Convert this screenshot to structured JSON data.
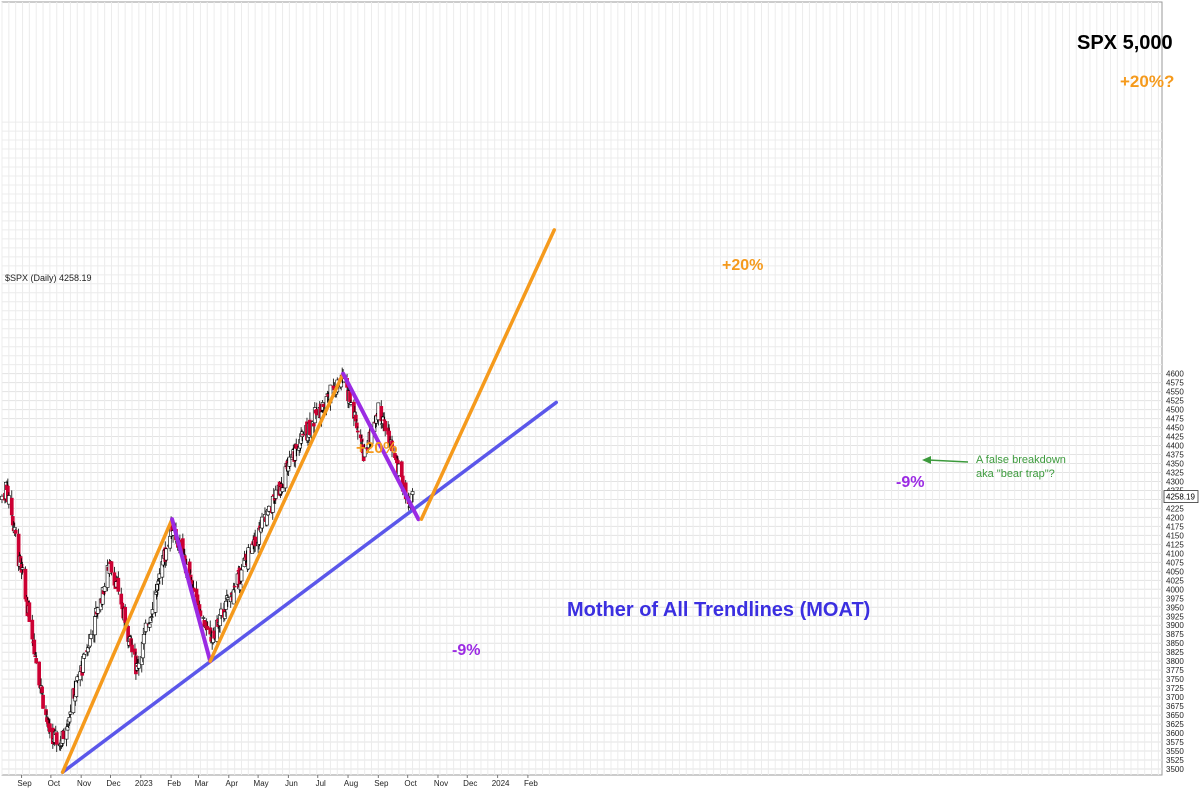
{
  "chart_data": {
    "type": "candlestick",
    "symbol_label": "$SPX (Daily) 4258.19",
    "last_price_label": "4258.19",
    "title": "SPX 5,000",
    "y_ticks": [
      3500,
      3525,
      3550,
      3575,
      3600,
      3625,
      3650,
      3675,
      3700,
      3725,
      3750,
      3775,
      3800,
      3825,
      3850,
      3875,
      3900,
      3925,
      3950,
      3975,
      4000,
      4025,
      4050,
      4075,
      4100,
      4125,
      4150,
      4175,
      4200,
      4225,
      4250,
      4275,
      4300,
      4325,
      4350,
      4375,
      4400,
      4425,
      4450,
      4475,
      4500,
      4525,
      4550,
      4575,
      4600
    ],
    "x_labels": [
      "Sep",
      "Oct",
      "Nov",
      "Dec",
      "2023",
      "Feb",
      "Mar",
      "Apr",
      "May",
      "Jun",
      "Jul",
      "Aug",
      "Sep",
      "Oct",
      "Nov",
      "Dec",
      "2024",
      "Feb"
    ],
    "ylim": [
      3490,
      4610
    ],
    "grid": true,
    "price_series_key_points": [
      {
        "date": "2022-08-16",
        "close": 4300
      },
      {
        "date": "2022-09-30",
        "close": 3585
      },
      {
        "date": "2022-10-12",
        "close": 3577
      },
      {
        "date": "2022-12-01",
        "close": 4076
      },
      {
        "date": "2022-12-28",
        "close": 3783
      },
      {
        "date": "2023-02-02",
        "close": 4179
      },
      {
        "date": "2023-03-13",
        "close": 3855
      },
      {
        "date": "2023-06-15",
        "close": 4425
      },
      {
        "date": "2023-07-27",
        "close": 4600
      },
      {
        "date": "2023-08-18",
        "close": 4370
      },
      {
        "date": "2023-09-01",
        "close": 4515
      },
      {
        "date": "2023-10-03",
        "close": 4229
      },
      {
        "date": "2023-10-06",
        "close": 4258
      }
    ],
    "overlay_lines": [
      {
        "name": "Mother of All Trendlines (MOAT)",
        "color": "#5b57ea",
        "points": [
          [
            "2022-10-13",
            3491
          ],
          [
            "2024-03-01",
            4520
          ]
        ]
      },
      {
        "name": "rally-1",
        "color": "#f59a1c",
        "points": [
          [
            "2022-10-13",
            3491
          ],
          [
            "2023-02-02",
            4195
          ]
        ]
      },
      {
        "name": "drop-1",
        "color": "#9b2be3",
        "points": [
          [
            "2023-02-02",
            4195
          ],
          [
            "2023-03-13",
            3800
          ]
        ]
      },
      {
        "name": "rally-2",
        "color": "#f59a1c",
        "points": [
          [
            "2023-03-13",
            3800
          ],
          [
            "2023-07-27",
            4600
          ]
        ]
      },
      {
        "name": "drop-2",
        "color": "#9b2be3",
        "points": [
          [
            "2023-07-27",
            4600
          ],
          [
            "2023-10-12",
            4195
          ]
        ]
      },
      {
        "name": "projection",
        "color": "#f59a1c",
        "points": [
          [
            "2023-10-15",
            4195
          ],
          [
            "2024-02-28",
            5000
          ]
        ]
      }
    ],
    "annotations": {
      "plus20_1": "+20%",
      "minus9_1": "-9%",
      "plus20_2": "+20%",
      "minus9_2": "-9%",
      "plus20_projected": "+20%?",
      "moat": "Mother of All Trendlines (MOAT)",
      "bear_trap_line1": "A false breakdown",
      "bear_trap_line2": "aka \"bear trap\"?"
    },
    "colors": {
      "up_candle": "#ffffff",
      "down_candle": "#cc0033",
      "wick": "#000000",
      "orange": "#f59a1c",
      "purple": "#9b2be3",
      "moat_blue": "#5b57ea",
      "note_green": "#3c9a3c"
    }
  }
}
